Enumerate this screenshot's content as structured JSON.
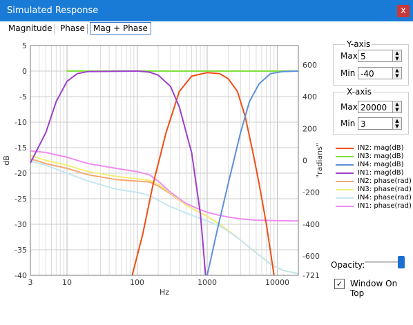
{
  "window": {
    "title": "Simulated Response",
    "close_label": "x"
  },
  "tabs": [
    {
      "label": "Magnitude"
    },
    {
      "label": "Phase"
    },
    {
      "label": "Mag + Phase",
      "active": true
    }
  ],
  "chart_data": {
    "type": "line",
    "xlabel": "Hz",
    "ylabel_left": "dB",
    "ylabel_right": "radians",
    "x_scale": "log",
    "xlim": [
      3,
      20000
    ],
    "ylim_left": [
      -40,
      5
    ],
    "ylim_right": [
      -721,
      721
    ],
    "grid": true,
    "left_ticks": [
      "5",
      "0",
      "-5",
      "-10",
      "-15",
      "-20",
      "-25",
      "-30",
      "-35",
      "-40"
    ],
    "right_ticks": [
      "600",
      "400",
      "200",
      "0",
      "-200",
      "-400",
      "-600",
      "-721"
    ],
    "x_ticks": [
      "3",
      "10",
      "100",
      "1000",
      "10000"
    ],
    "series": [
      {
        "name": "IN2: mag(dB)",
        "color": "#f04d12",
        "axis": "left",
        "points": [
          [
            85,
            -40
          ],
          [
            120,
            -32
          ],
          [
            170,
            -22
          ],
          [
            260,
            -12
          ],
          [
            400,
            -4
          ],
          [
            600,
            -1
          ],
          [
            1000,
            -0.3
          ],
          [
            1500,
            -0.5
          ],
          [
            2000,
            -1.5
          ],
          [
            2700,
            -4
          ],
          [
            3500,
            -9
          ],
          [
            4500,
            -16
          ],
          [
            5500,
            -22
          ],
          [
            7000,
            -30
          ],
          [
            9000,
            -40
          ]
        ]
      },
      {
        "name": "IN3: mag(dB)",
        "color": "#7de03a",
        "axis": "left",
        "points": [
          [
            10,
            0
          ],
          [
            100,
            0
          ],
          [
            1000,
            0
          ],
          [
            20000,
            0
          ]
        ]
      },
      {
        "name": "IN4: mag(dB)",
        "color": "#5b8fdb",
        "axis": "left",
        "points": [
          [
            1000,
            -40
          ],
          [
            1400,
            -31
          ],
          [
            2000,
            -22
          ],
          [
            3000,
            -12
          ],
          [
            4000,
            -6
          ],
          [
            5500,
            -2.5
          ],
          [
            8000,
            -0.5
          ],
          [
            12000,
            -0.1
          ],
          [
            20000,
            0
          ]
        ]
      },
      {
        "name": "IN1: mag(dB)",
        "color": "#9b3fc8",
        "axis": "left",
        "points": [
          [
            3,
            -18
          ],
          [
            5,
            -12
          ],
          [
            7,
            -6
          ],
          [
            10,
            -2
          ],
          [
            14,
            -0.5
          ],
          [
            20,
            -0.1
          ],
          [
            100,
            0
          ],
          [
            150,
            -0.2
          ],
          [
            200,
            -0.8
          ],
          [
            300,
            -3
          ],
          [
            400,
            -7
          ],
          [
            600,
            -16
          ],
          [
            800,
            -28
          ],
          [
            950,
            -40
          ]
        ]
      },
      {
        "name": "IN2: phase(rad)",
        "color": "#f5a870",
        "axis": "right",
        "points": [
          [
            3,
            10
          ],
          [
            5,
            -20
          ],
          [
            10,
            -50
          ],
          [
            20,
            -90
          ],
          [
            50,
            -120
          ],
          [
            100,
            -130
          ],
          [
            150,
            -135
          ],
          [
            200,
            -160
          ],
          [
            300,
            -210
          ],
          [
            500,
            -280
          ],
          [
            800,
            -330
          ],
          [
            1000,
            -350
          ],
          [
            1500,
            -400
          ],
          [
            2000,
            -440
          ],
          [
            3000,
            -500
          ],
          [
            5000,
            -580
          ],
          [
            8000,
            -650
          ],
          [
            12000,
            -690
          ],
          [
            20000,
            -710
          ]
        ]
      },
      {
        "name": "IN3: phase(rad)",
        "color": "#f2ee78",
        "axis": "right",
        "points": [
          [
            3,
            30
          ],
          [
            5,
            0
          ],
          [
            10,
            -30
          ],
          [
            20,
            -70
          ],
          [
            50,
            -100
          ],
          [
            100,
            -115
          ],
          [
            150,
            -125
          ],
          [
            200,
            -150
          ],
          [
            300,
            -205
          ],
          [
            500,
            -280
          ],
          [
            800,
            -330
          ],
          [
            1000,
            -350
          ],
          [
            1500,
            -400
          ],
          [
            2000,
            -440
          ],
          [
            3000,
            -500
          ],
          [
            5000,
            -580
          ],
          [
            8000,
            -650
          ],
          [
            12000,
            -690
          ],
          [
            20000,
            -710
          ]
        ]
      },
      {
        "name": "IN4: phase(rad)",
        "color": "#c4e6f2",
        "axis": "right",
        "points": [
          [
            3,
            -5
          ],
          [
            5,
            -30
          ],
          [
            10,
            -80
          ],
          [
            20,
            -130
          ],
          [
            50,
            -180
          ],
          [
            100,
            -200
          ],
          [
            150,
            -220
          ],
          [
            200,
            -250
          ],
          [
            300,
            -290
          ],
          [
            500,
            -330
          ],
          [
            800,
            -365
          ],
          [
            1000,
            -380
          ],
          [
            1500,
            -410
          ],
          [
            2000,
            -445
          ],
          [
            3000,
            -500
          ],
          [
            5000,
            -580
          ],
          [
            8000,
            -650
          ],
          [
            12000,
            -690
          ],
          [
            20000,
            -710
          ]
        ]
      },
      {
        "name": "IN1: phase(rad)",
        "color": "#ef8cf0",
        "axis": "right",
        "points": [
          [
            3,
            60
          ],
          [
            5,
            50
          ],
          [
            10,
            20
          ],
          [
            20,
            -20
          ],
          [
            50,
            -50
          ],
          [
            100,
            -70
          ],
          [
            150,
            -90
          ],
          [
            200,
            -130
          ],
          [
            300,
            -200
          ],
          [
            500,
            -270
          ],
          [
            800,
            -310
          ],
          [
            1000,
            -325
          ],
          [
            1500,
            -345
          ],
          [
            2000,
            -355
          ],
          [
            3000,
            -367
          ],
          [
            5000,
            -375
          ],
          [
            10000,
            -378
          ],
          [
            20000,
            -380
          ]
        ]
      }
    ]
  },
  "yaxis": {
    "title": "Y-axis",
    "max_label": "Max.",
    "max_value": "5",
    "min_label": "Min",
    "min_value": "-40"
  },
  "xaxis": {
    "title": "X-axis",
    "max_label": "Max.",
    "max_value": "20000",
    "min_label": "Min",
    "min_value": "3"
  },
  "legend": [
    {
      "label": "IN2: mag(dB)",
      "color": "#f04d12"
    },
    {
      "label": "IN3: mag(dB)",
      "color": "#7de03a"
    },
    {
      "label": "IN4: mag(dB)",
      "color": "#5b8fdb"
    },
    {
      "label": "IN1: mag(dB)",
      "color": "#9b3fc8"
    },
    {
      "label": "IN2: phase(rad)",
      "color": "#f5a870"
    },
    {
      "label": "IN3: phase(rad)",
      "color": "#f2ee78"
    },
    {
      "label": "IN4: phase(rad)",
      "color": "#c4e6f2"
    },
    {
      "label": "IN1: phase(rad)",
      "color": "#ef8cf0"
    }
  ],
  "opacity": {
    "label": "Opacity:",
    "value": 1.0
  },
  "window_on_top": {
    "label": "Window On Top",
    "checked": true,
    "check_glyph": "✓"
  }
}
